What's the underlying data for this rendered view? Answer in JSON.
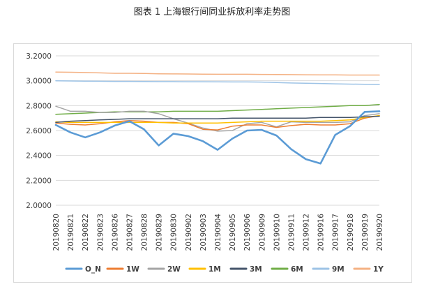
{
  "page": {
    "title": "图表 1  上海银行间同业拆放利率走势图"
  },
  "chart_data": {
    "type": "line",
    "title": "",
    "xlabel": "",
    "ylabel": "",
    "ylim": [
      2.0,
      3.2
    ],
    "yticks": [
      "2.0000",
      "2.2000",
      "2.4000",
      "2.6000",
      "2.8000",
      "3.0000",
      "3.2000"
    ],
    "grid": "horizontal",
    "legend": "bottom",
    "x": [
      "20190820",
      "20190821",
      "20190822",
      "20190823",
      "20190826",
      "20190827",
      "20190828",
      "20190829",
      "20190830",
      "20190902",
      "20190903",
      "20190904",
      "20190905",
      "20190906",
      "20190909",
      "20190910",
      "20190911",
      "20190912",
      "20190916",
      "20190917",
      "20190918",
      "20190919",
      "20190920"
    ],
    "series": [
      {
        "name": "O_N",
        "color": "#5B9BD5",
        "width": 2.6,
        "values": [
          2.645,
          2.585,
          2.545,
          2.585,
          2.64,
          2.675,
          2.61,
          2.48,
          2.575,
          2.555,
          2.515,
          2.445,
          2.535,
          2.6,
          2.605,
          2.56,
          2.45,
          2.37,
          2.335,
          2.565,
          2.635,
          2.75,
          2.755
        ]
      },
      {
        "name": "1W",
        "color": "#ED7D31",
        "width": 1.5,
        "values": [
          2.66,
          2.65,
          2.645,
          2.655,
          2.67,
          2.68,
          2.675,
          2.665,
          2.665,
          2.655,
          2.61,
          2.605,
          2.635,
          2.645,
          2.645,
          2.625,
          2.64,
          2.65,
          2.645,
          2.645,
          2.655,
          2.7,
          2.72
        ]
      },
      {
        "name": "2W",
        "color": "#A5A5A5",
        "width": 1.5,
        "values": [
          2.795,
          2.755,
          2.755,
          2.745,
          2.745,
          2.755,
          2.755,
          2.735,
          2.695,
          2.66,
          2.62,
          2.595,
          2.6,
          2.655,
          2.665,
          2.63,
          2.67,
          2.665,
          2.665,
          2.665,
          2.67,
          2.72,
          2.735
        ]
      },
      {
        "name": "1M",
        "color": "#FFC000",
        "width": 1.5,
        "values": [
          2.67,
          2.665,
          2.665,
          2.665,
          2.665,
          2.665,
          2.665,
          2.665,
          2.66,
          2.66,
          2.66,
          2.66,
          2.665,
          2.67,
          2.675,
          2.675,
          2.675,
          2.675,
          2.675,
          2.68,
          2.685,
          2.705,
          2.72
        ]
      },
      {
        "name": "3M",
        "color": "#44546A",
        "width": 1.5,
        "values": [
          2.665,
          2.675,
          2.68,
          2.685,
          2.69,
          2.695,
          2.695,
          2.695,
          2.695,
          2.695,
          2.695,
          2.695,
          2.7,
          2.7,
          2.7,
          2.7,
          2.7,
          2.7,
          2.705,
          2.705,
          2.705,
          2.71,
          2.715
        ]
      },
      {
        "name": "6M",
        "color": "#70AD47",
        "width": 1.5,
        "values": [
          2.73,
          2.735,
          2.74,
          2.745,
          2.75,
          2.75,
          2.75,
          2.75,
          2.755,
          2.755,
          2.755,
          2.755,
          2.76,
          2.765,
          2.77,
          2.775,
          2.78,
          2.785,
          2.79,
          2.795,
          2.8,
          2.8,
          2.81
        ]
      },
      {
        "name": "9M",
        "color": "#9DC3E6",
        "width": 1.5,
        "values": [
          3.0,
          2.998,
          2.997,
          2.996,
          2.995,
          2.995,
          2.994,
          2.993,
          2.993,
          2.992,
          2.992,
          2.991,
          2.99,
          2.99,
          2.989,
          2.985,
          2.982,
          2.98,
          2.978,
          2.975,
          2.973,
          2.972,
          2.97
        ]
      },
      {
        "name": "1Y",
        "color": "#F4B183",
        "width": 1.5,
        "values": [
          3.07,
          3.068,
          3.066,
          3.063,
          3.06,
          3.06,
          3.058,
          3.056,
          3.055,
          3.054,
          3.053,
          3.052,
          3.052,
          3.052,
          3.051,
          3.05,
          3.049,
          3.048,
          3.047,
          3.047,
          3.046,
          3.046,
          3.046
        ]
      }
    ]
  }
}
